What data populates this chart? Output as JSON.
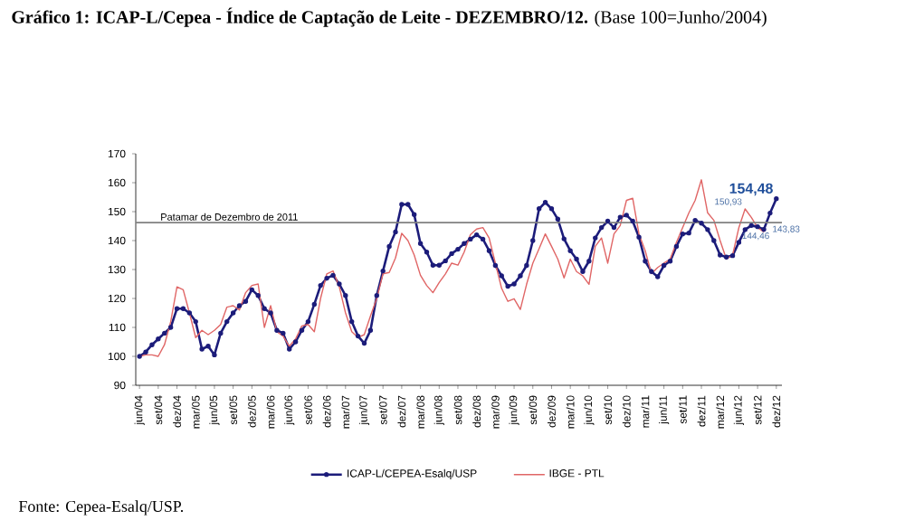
{
  "chart_data": {
    "type": "line",
    "title": "**Gráfico 1: ICAP-L/Cepea - Índice de Captação de Leite - DEZEMBRO/12.** (Base 100=Junho/2004)",
    "categories": [
      "jun/04",
      null,
      null,
      "set/04",
      null,
      null,
      "dez/04",
      null,
      null,
      "mar/05",
      null,
      null,
      "jun/05",
      null,
      null,
      "set/05",
      null,
      null,
      "dez/05",
      null,
      null,
      "mar/06",
      null,
      null,
      "jun/06",
      null,
      null,
      "set/06",
      null,
      null,
      "dez/06",
      null,
      null,
      "mar/07",
      null,
      null,
      "jun/07",
      null,
      null,
      "set/07",
      null,
      null,
      "dez/07",
      null,
      null,
      "mar/08",
      null,
      null,
      "jun/08",
      null,
      null,
      "set/08",
      null,
      null,
      "dez/08",
      null,
      null,
      "mar/09",
      null,
      null,
      "jun/09",
      null,
      null,
      "set/09",
      null,
      null,
      "dez/09",
      null,
      null,
      "mar/10",
      null,
      null,
      "jun/10",
      null,
      null,
      "set/10",
      null,
      null,
      "dez/10",
      null,
      null,
      "mar/11",
      null,
      null,
      "jun/11",
      null,
      null,
      "set/11",
      null,
      null,
      "dez/11",
      null,
      null,
      "mar/12",
      null,
      null,
      "jun/12",
      null,
      null,
      "set/12",
      null,
      null,
      "dez/12"
    ],
    "series": [
      {
        "name": "ICAP-L/CEPEA-Esalq/USP",
        "color": "#1c1c7a",
        "marker": "circle",
        "values": [
          100,
          101.5,
          104,
          106,
          108,
          110,
          116.5,
          116.5,
          115,
          112,
          102.5,
          103.5,
          100.5,
          108,
          112,
          115,
          117.5,
          119,
          123,
          121,
          116.5,
          115,
          109,
          108,
          102.5,
          105,
          109,
          112,
          118,
          124.5,
          127,
          128,
          125,
          121,
          112,
          107,
          104.5,
          109,
          121,
          129.5,
          138,
          143,
          152.5,
          152.5,
          149,
          139,
          136,
          131.5,
          131.5,
          133,
          135.5,
          137,
          139,
          140.5,
          142,
          140.5,
          136.5,
          131.4,
          127.8,
          124.2,
          125,
          127.8,
          131.4,
          140,
          151,
          153.2,
          151,
          147.4,
          140.6,
          136.5,
          133.6,
          129.3,
          132.9,
          140.9,
          144.5,
          146.7,
          144.5,
          148.1,
          148.8,
          146.7,
          141.2,
          132.9,
          129.3,
          127.5,
          131.4,
          132.9,
          138,
          142.3,
          142.6,
          147,
          146,
          143.8,
          140,
          135,
          134.3,
          134.8,
          139.4,
          143.8,
          145.2,
          144.8,
          143.83,
          149.5,
          154.48
        ],
        "value_labels": [
          null,
          null,
          null,
          null,
          null,
          null,
          null,
          null,
          null,
          null,
          null,
          null,
          null,
          null,
          null,
          null,
          null,
          null,
          null,
          null,
          null,
          null,
          null,
          null,
          null,
          null,
          null,
          null,
          null,
          null,
          null,
          null,
          null,
          null,
          null,
          null,
          null,
          null,
          null,
          null,
          null,
          null,
          null,
          null,
          null,
          null,
          null,
          null,
          null,
          null,
          null,
          null,
          null,
          null,
          null,
          null,
          null,
          null,
          null,
          null,
          null,
          null,
          null,
          null,
          null,
          null,
          null,
          null,
          null,
          null,
          null,
          null,
          null,
          null,
          null,
          null,
          null,
          null,
          null,
          null,
          null,
          null,
          null,
          null,
          null,
          null,
          null,
          null,
          null,
          null,
          null,
          null,
          null,
          null,
          null,
          null,
          null,
          null,
          null,
          null,
          "143,83",
          null,
          "154,48"
        ]
      },
      {
        "name": "IBGE - PTL",
        "color": "#e06666",
        "values": [
          100,
          100.5,
          100.5,
          100,
          104,
          112,
          124,
          123,
          115,
          106.5,
          109,
          107.5,
          109,
          111,
          117,
          117.5,
          116,
          122,
          124.5,
          125,
          110,
          117.5,
          108.5,
          107,
          103.5,
          106,
          110.5,
          111,
          108.5,
          120,
          128.5,
          129.5,
          124,
          115,
          108.5,
          106.5,
          107.5,
          114,
          120,
          128.5,
          129,
          134,
          142.5,
          140,
          135,
          128,
          124.5,
          122,
          125.5,
          128.5,
          132.2,
          131.5,
          136,
          142,
          144,
          144.5,
          140.9,
          132.2,
          123.5,
          119,
          119.9,
          116.2,
          124.9,
          132.2,
          137.2,
          142.3,
          138,
          133.6,
          127.1,
          133.6,
          129.3,
          127.8,
          124.9,
          138,
          140.9,
          132.2,
          142.3,
          145.2,
          153.9,
          154.6,
          142.3,
          136.5,
          128.6,
          130.7,
          132.2,
          133.6,
          139.4,
          144.5,
          149.6,
          153.9,
          161,
          149.6,
          147,
          140,
          133.6,
          135,
          144.46,
          150.93,
          148,
          144.5,
          143,
          null,
          null
        ],
        "value_labels": [
          null,
          null,
          null,
          null,
          null,
          null,
          null,
          null,
          null,
          null,
          null,
          null,
          null,
          null,
          null,
          null,
          null,
          null,
          null,
          null,
          null,
          null,
          null,
          null,
          null,
          null,
          null,
          null,
          null,
          null,
          null,
          null,
          null,
          null,
          null,
          null,
          null,
          null,
          null,
          null,
          null,
          null,
          null,
          null,
          null,
          null,
          null,
          null,
          null,
          null,
          null,
          null,
          null,
          null,
          null,
          null,
          null,
          null,
          null,
          null,
          null,
          null,
          null,
          null,
          null,
          null,
          null,
          null,
          null,
          null,
          null,
          null,
          null,
          null,
          null,
          null,
          null,
          null,
          null,
          null,
          null,
          null,
          null,
          null,
          null,
          null,
          null,
          null,
          null,
          null,
          null,
          null,
          null,
          null,
          null,
          null,
          "144,46",
          "150,93",
          null,
          null,
          null,
          null,
          null
        ]
      }
    ],
    "ylim": [
      90,
      170
    ],
    "yticks": [
      90,
      100,
      110,
      120,
      130,
      140,
      150,
      160,
      170
    ],
    "ref_lines": [
      {
        "axis": "y",
        "value": 146.2,
        "label": "Patamar de Dezembro de 2011",
        "color": "#808080"
      }
    ],
    "legend": "bottom",
    "grid": false,
    "annotations": [
      "Fonte: Cepea-Esalq/USP."
    ]
  }
}
